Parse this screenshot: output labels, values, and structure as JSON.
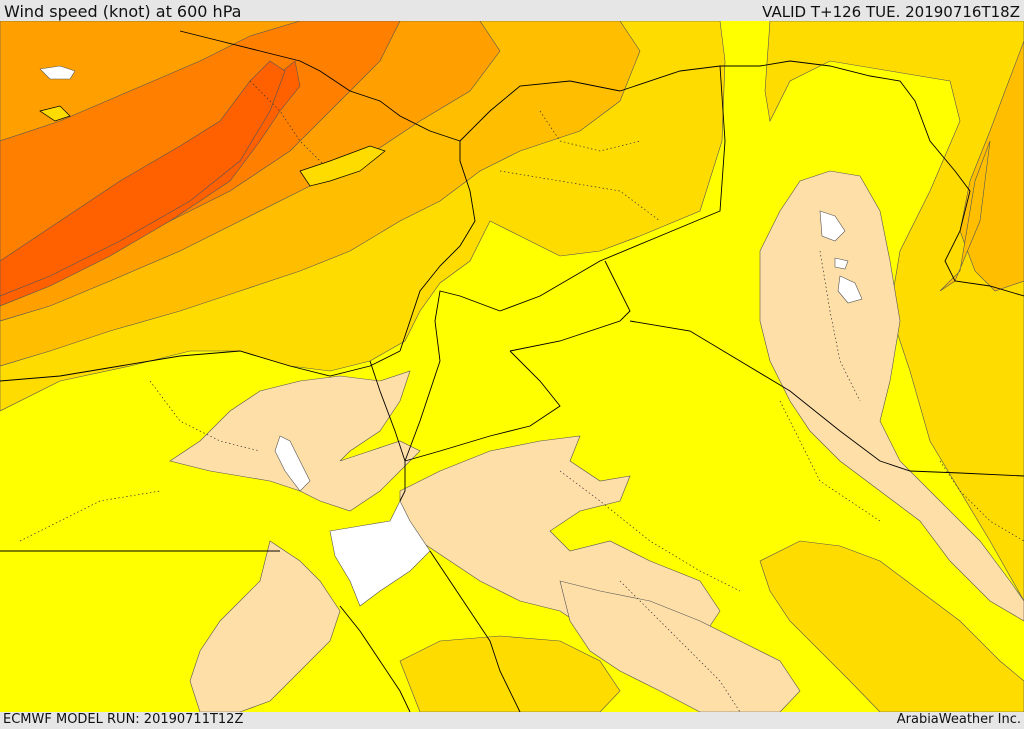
{
  "header": {
    "title": "Wind speed (knot) at 600 hPa",
    "valid_time": "VALID T+126 TUE. 20190716T18Z"
  },
  "footer": {
    "model_run": "ECMWF MODEL RUN: 20190711T12Z",
    "credit": "ArabiaWeather Inc."
  },
  "map": {
    "variable": "wind speed",
    "units": "knot",
    "pressure_level_hpa": 600,
    "colors": {
      "calm_white": "#ffffff",
      "light_tan": "#ffdfa8",
      "yellow": "#ffff00",
      "gold": "#ffdc00",
      "light_orange": "#ffbf00",
      "orange": "#ffa000",
      "dark_orange": "#ff8000",
      "red_orange": "#ff6000",
      "contour_line": "#555555",
      "border_line": "#000000"
    }
  }
}
